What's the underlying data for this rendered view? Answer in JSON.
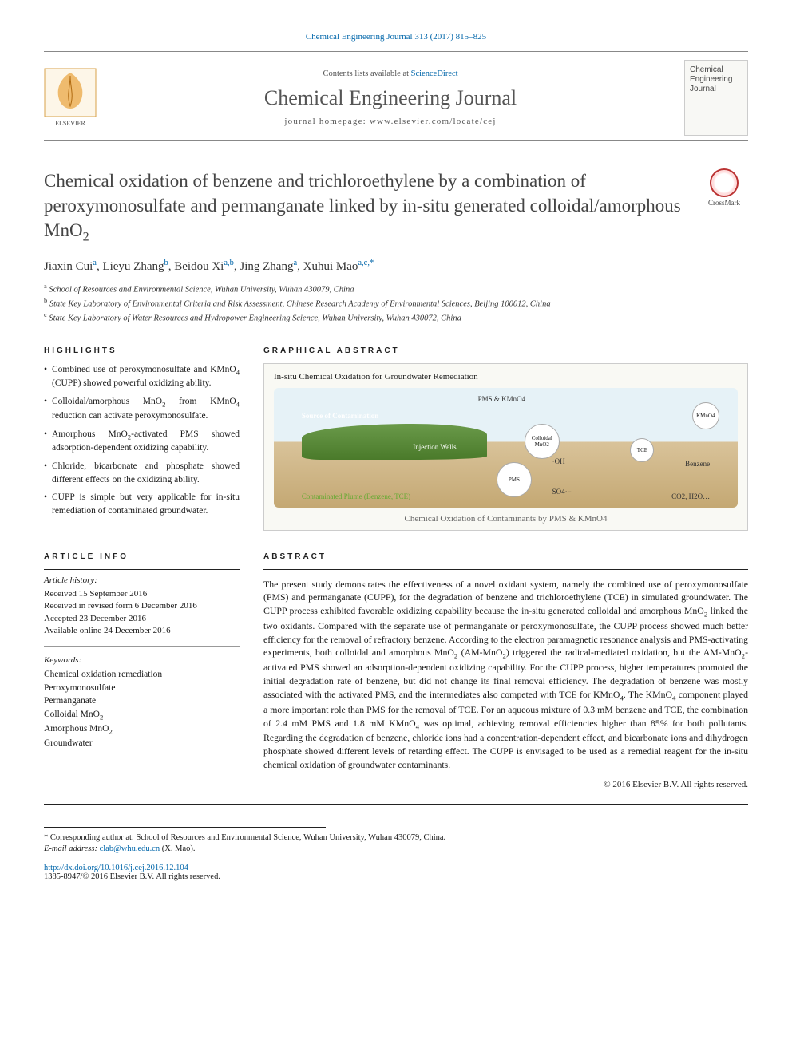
{
  "meta": {
    "citation": "Chemical Engineering Journal 313 (2017) 815–825",
    "contents_prefix": "Contents lists available at ",
    "contents_link": "ScienceDirect",
    "journal_name": "Chemical Engineering Journal",
    "homepage_label": "journal homepage: ",
    "homepage_url": "www.elsevier.com/locate/cej",
    "journal_thumb_line1": "Chemical",
    "journal_thumb_line2": "Engineering",
    "journal_thumb_line3": "Journal",
    "crossmark_label": "CrossMark"
  },
  "title": "Chemical oxidation of benzene and trichloroethylene by a combination of peroxymonosulfate and permanganate linked by in-situ generated colloidal/amorphous MnO",
  "title_sub": "2",
  "authors_html": "Jiaxin Cui<sup>a</sup>, Lieyu Zhang<sup>b</sup>, Beidou Xi<sup>a,b</sup>, Jing Zhang<sup>a</sup>, Xuhui Mao<sup>a,c,*</sup>",
  "affiliations": [
    {
      "sup": "a",
      "text": "School of Resources and Environmental Science, Wuhan University, Wuhan 430079, China"
    },
    {
      "sup": "b",
      "text": "State Key Laboratory of Environmental Criteria and Risk Assessment, Chinese Research Academy of Environmental Sciences, Beijing 100012, China"
    },
    {
      "sup": "c",
      "text": "State Key Laboratory of Water Resources and Hydropower Engineering Science, Wuhan University, Wuhan 430072, China"
    }
  ],
  "highlights_head": "HIGHLIGHTS",
  "highlights": [
    "Combined use of peroxymonosulfate and KMnO<sub>4</sub> (CUPP) showed powerful oxidizing ability.",
    "Colloidal/amorphous MnO<sub>2</sub> from KMnO<sub>4</sub> reduction can activate peroxymonosulfate.",
    "Amorphous MnO<sub>2</sub>-activated PMS showed adsorption-dependent oxidizing capability.",
    "Chloride, bicarbonate and phosphate showed different effects on the oxidizing ability.",
    "CUPP is simple but very applicable for in-situ remediation of contaminated groundwater."
  ],
  "ga_head": "GRAPHICAL ABSTRACT",
  "ga": {
    "title": "In-situ Chemical Oxidation for Groundwater Remediation",
    "caption": "Chemical Oxidation of Contaminants by PMS & KMnO4",
    "labels": {
      "source": "Source of Contamination",
      "wells": "Injection Wells",
      "plume": "Contaminated Plume (Benzene, TCE)",
      "pms_kmno4": "PMS & KMnO4",
      "colloidal": "Colloidal MnO2",
      "pms": "PMS",
      "kmno4": "KMnO4",
      "oh": "·OH",
      "so4": "SO4·−",
      "tce": "TCE",
      "benzene": "Benzene",
      "co2": "CO2, H2O…"
    },
    "colors": {
      "sky": "#e6f2f7",
      "soil_top": "#d9c39a",
      "soil_bot": "#c4a873",
      "land": "#5a8a3a",
      "circle_fill": "#ffffff",
      "circle_border": "#aaaaaa"
    }
  },
  "article_info_head": "ARTICLE INFO",
  "article_history_head": "Article history:",
  "article_history": [
    "Received 15 September 2016",
    "Received in revised form 6 December 2016",
    "Accepted 23 December 2016",
    "Available online 24 December 2016"
  ],
  "keywords_head": "Keywords:",
  "keywords": [
    "Chemical oxidation remediation",
    "Peroxymonosulfate",
    "Permanganate",
    "Colloidal MnO<sub>2</sub>",
    "Amorphous MnO<sub>2</sub>",
    "Groundwater"
  ],
  "abstract_head": "ABSTRACT",
  "abstract": "The present study demonstrates the effectiveness of a novel oxidant system, namely the combined use of peroxymonosulfate (PMS) and permanganate (CUPP), for the degradation of benzene and trichloroethylene (TCE) in simulated groundwater. The CUPP process exhibited favorable oxidizing capability because the in-situ generated colloidal and amorphous MnO<sub>2</sub> linked the two oxidants. Compared with the separate use of permanganate or peroxymonosulfate, the CUPP process showed much better efficiency for the removal of refractory benzene. According to the electron paramagnetic resonance analysis and PMS-activating experiments, both colloidal and amorphous MnO<sub>2</sub> (AM-MnO<sub>2</sub>) triggered the radical-mediated oxidation, but the AM-MnO<sub>2</sub>-activated PMS showed an adsorption-dependent oxidizing capability. For the CUPP process, higher temperatures promoted the initial degradation rate of benzene, but did not change its final removal efficiency. The degradation of benzene was mostly associated with the activated PMS, and the intermediates also competed with TCE for KMnO<sub>4</sub>. The KMnO<sub>4</sub> component played a more important role than PMS for the removal of TCE. For an aqueous mixture of 0.3 mM benzene and TCE, the combination of 2.4 mM PMS and 1.8 mM KMnO<sub>4</sub> was optimal, achieving removal efficiencies higher than 85% for both pollutants. Regarding the degradation of benzene, chloride ions had a concentration-dependent effect, and bicarbonate ions and dihydrogen phosphate showed different levels of retarding effect. The CUPP is envisaged to be used as a remedial reagent for the in-situ chemical oxidation of groundwater contaminants.",
  "copyright": "© 2016 Elsevier B.V. All rights reserved.",
  "corresponding": {
    "star": "*",
    "label": "Corresponding author at: School of Resources and Environmental Science, Wuhan University, Wuhan 430079, China.",
    "email_label": "E-mail address: ",
    "email": "clab@whu.edu.cn",
    "email_suffix": " (X. Mao)."
  },
  "doi": {
    "url_label": "http://dx.doi.org/10.1016/j.cej.2016.12.104",
    "issn_line": "1385-8947/© 2016 Elsevier B.V. All rights reserved."
  },
  "colors": {
    "link": "#0066aa",
    "text": "#1a1a1a",
    "muted": "#555555",
    "rule": "#222222"
  }
}
